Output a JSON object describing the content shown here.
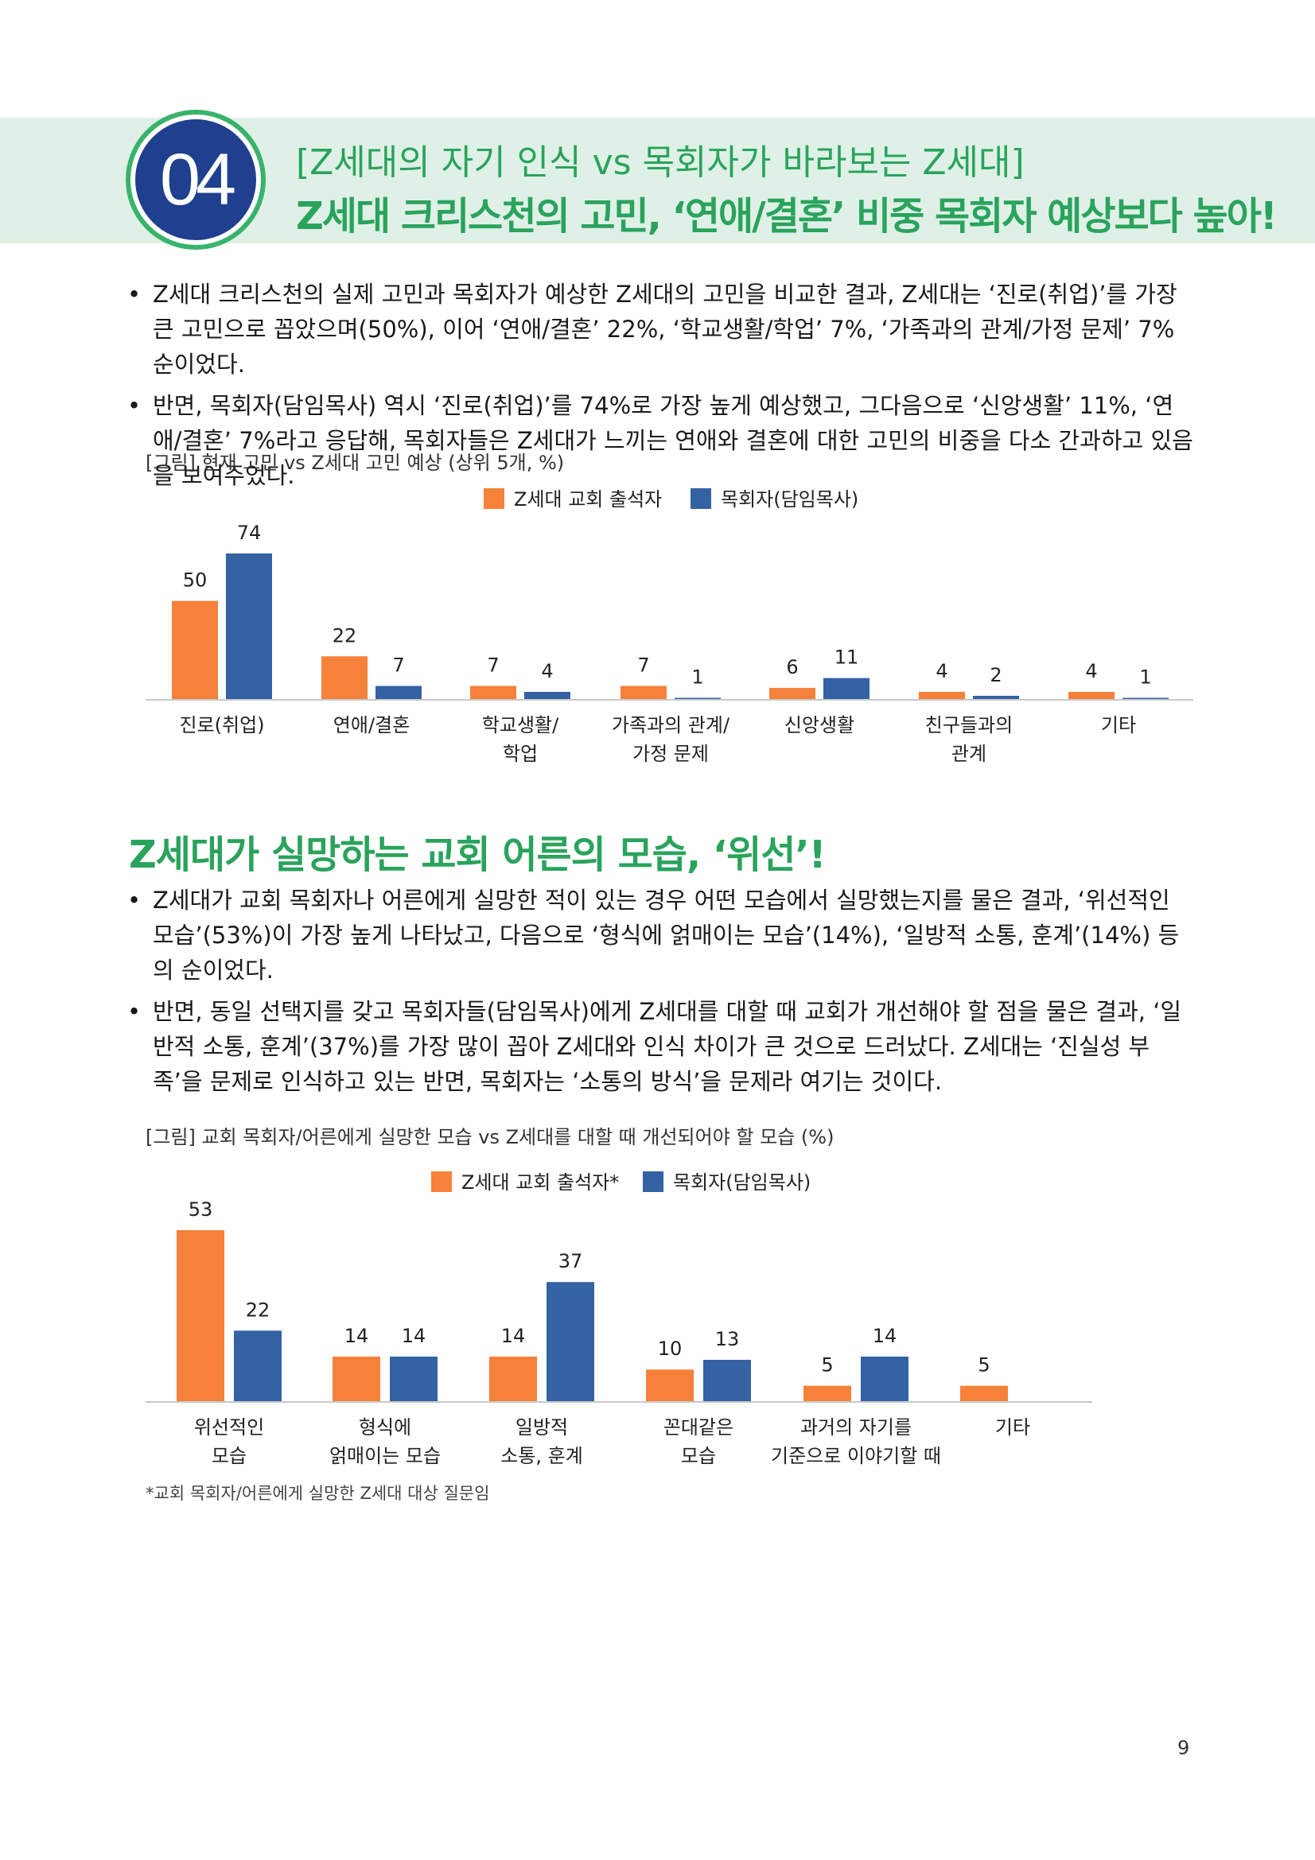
{
  "header": {
    "number": "04",
    "subtitle": "[Z세대의 자기 인식 vs 목회자가 바라보는 Z세대]",
    "title": "Z세대 크리스천의 고민, ‘연애/결혼’ 비중 목회자 예상보다 높아!"
  },
  "section1": {
    "bullets": [
      "Z세대 크리스천의 실제 고민과 목회자가 예상한 Z세대의 고민을 비교한 결과, Z세대는 ‘진로(취업)’를 가장 큰 고민으로 꼽았으며(50%), 이어 ‘연애/결혼’ 22%, ‘학교생활/학업’ 7%, ‘가족과의 관계/가정 문제’ 7% 순이었다.",
      "반면, 목회자(담임목사) 역시 ‘진로(취업)’를 74%로 가장 높게 예상했고, 그다음으로 ‘신앙생활’ 11%, ‘연애/결혼’ 7%라고 응답해, 목회자들은 Z세대가 느끼는 연애와 결혼에 대한 고민의 비중을 다소 간과하고 있음을 보여주었다."
    ],
    "caption": "[그림] 현재 고민 vs Z세대 고민 예상 (상위 5개, %)"
  },
  "section2": {
    "title": "Z세대가 실망하는 교회 어른의 모습, ‘위선’!",
    "bullets": [
      "Z세대가 교회 목회자나 어른에게 실망한 적이 있는 경우 어떤 모습에서 실망했는지를 물은 결과, ‘위선적인 모습’(53%)이 가장 높게 나타났고, 다음으로 ‘형식에 얽매이는 모습’(14%), ‘일방적 소통, 훈계’(14%) 등의 순이었다.",
      "반면, 동일 선택지를 갖고 목회자들(담임목사)에게 Z세대를 대할 때 교회가 개선해야 할 점을 물은 결과, ‘일반적 소통, 훈계’(37%)를 가장 많이 꼽아 Z세대와 인식 차이가 큰 것으로 드러났다. Z세대는 ‘진실성 부족’을 문제로 인식하고 있는 반면, 목회자는 ‘소통의 방식’을 문제라 여기는 것이다."
    ],
    "caption": "[그림] 교회 목회자/어른에게 실망한 모습 vs Z세대를 대할 때 개선되어야 할 모습 (%)",
    "footnote": "*교회 목회자/어른에게 실망한 Z세대 대상 질문임"
  },
  "page_number": "9",
  "colors": {
    "orange": "#f5813a",
    "blue": "#3462a3",
    "green": "#2aa35c",
    "banner": "#dff1e7"
  },
  "chart_data": [
    {
      "type": "bar",
      "categories": [
        "진로(취업)",
        "연애/결혼",
        "학교생활/\n학업",
        "가족과의 관계/\n가정 문제",
        "신앙생활",
        "친구들과의\n관계",
        "기타"
      ],
      "series": [
        {
          "name": "Z세대 교회 출석자",
          "values": [
            50,
            22,
            7,
            7,
            6,
            4,
            4
          ]
        },
        {
          "name": "목회자(담임목사)",
          "values": [
            74,
            7,
            4,
            1,
            11,
            2,
            1
          ]
        }
      ],
      "ylim": [
        0,
        74
      ],
      "legend": "top-center"
    },
    {
      "type": "bar",
      "categories": [
        "위선적인\n모습",
        "형식에\n얽매이는 모습",
        "일방적\n소통, 훈계",
        "꼰대같은\n모습",
        "과거의 자기를\n기준으로 이야기할 때",
        "기타"
      ],
      "series": [
        {
          "name": "Z세대 교회 출석자*",
          "values": [
            53,
            14,
            14,
            10,
            5,
            5
          ]
        },
        {
          "name": "목회자(담임목사)",
          "values": [
            22,
            14,
            37,
            13,
            14,
            null
          ]
        }
      ],
      "ylim": [
        0,
        53
      ],
      "legend": "top-center"
    }
  ]
}
